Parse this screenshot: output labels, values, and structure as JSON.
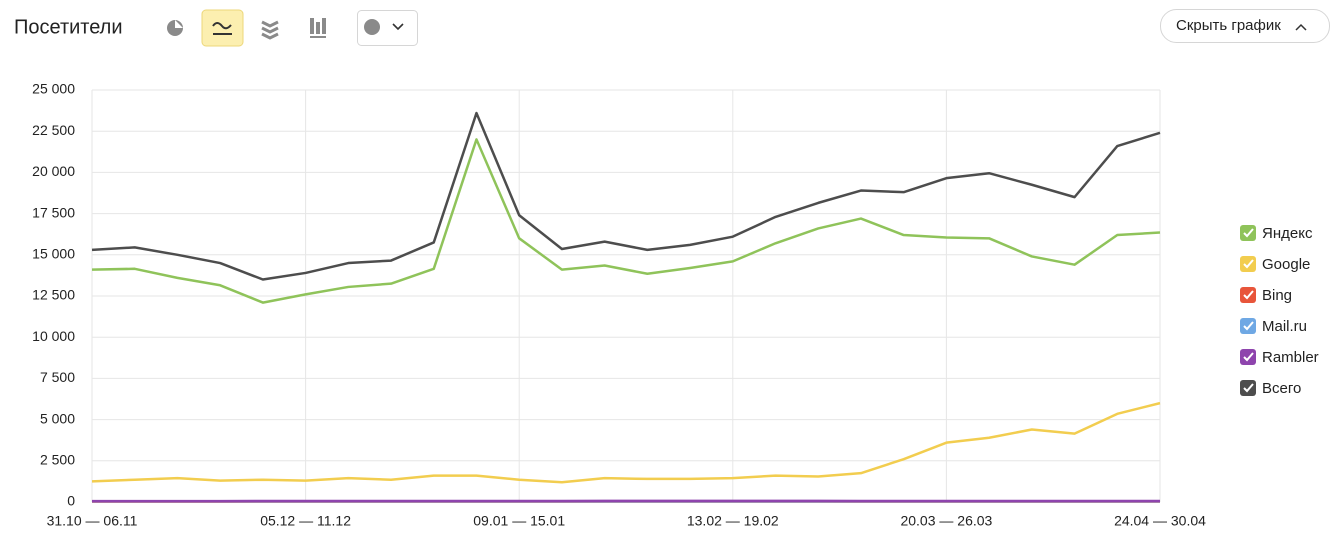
{
  "header": {
    "title": "Посетители",
    "toggle_button": "Скрыть график"
  },
  "chart_data": {
    "type": "line",
    "categories": [
      "31.10 — 06.11",
      null,
      null,
      null,
      null,
      "05.12 — 11.12",
      null,
      null,
      null,
      null,
      "09.01 — 15.01",
      null,
      null,
      null,
      null,
      "13.02 — 19.02",
      null,
      null,
      null,
      null,
      "20.03 — 26.03",
      null,
      null,
      null,
      null,
      "24.04 — 30.04"
    ],
    "ylim": [
      0,
      25000
    ],
    "yticks": [
      0,
      {
        "value": 2500,
        "label": "2 500"
      },
      {
        "value": 5000,
        "label": "5 000"
      },
      {
        "value": 7500,
        "label": "7 500"
      },
      {
        "value": 10000,
        "label": "10 000"
      },
      {
        "value": 12500,
        "label": "12 500"
      },
      {
        "value": 15000,
        "label": "15 000"
      },
      {
        "value": 17500,
        "label": "17 500"
      },
      {
        "value": 20000,
        "label": "20 000"
      },
      {
        "value": 22500,
        "label": "22 500"
      },
      {
        "value": 25000,
        "label": "25 000"
      }
    ],
    "grid": true,
    "legend": "right",
    "series": [
      {
        "name": "Яндекс",
        "color": "#8fc35a",
        "values": [
          14100,
          14150,
          13600,
          13150,
          12100,
          12600,
          13050,
          13250,
          14150,
          22000,
          16000,
          14100,
          14350,
          13850,
          14200,
          14600,
          15700,
          16600,
          17200,
          16200,
          16050,
          16000,
          14900,
          14400,
          16200,
          16350
        ]
      },
      {
        "name": "Google",
        "color": "#f2cd4f",
        "values": [
          1250,
          1350,
          1450,
          1300,
          1350,
          1300,
          1450,
          1350,
          1600,
          1600,
          1350,
          1200,
          1450,
          1400,
          1400,
          1450,
          1600,
          1550,
          1750,
          2600,
          3600,
          3900,
          4400,
          4150,
          5350,
          6000
        ]
      },
      {
        "name": "Bing",
        "color": "#e8553a",
        "values": [
          20,
          20,
          20,
          20,
          20,
          20,
          20,
          20,
          20,
          20,
          20,
          20,
          20,
          20,
          20,
          20,
          20,
          20,
          20,
          20,
          20,
          20,
          20,
          20,
          20,
          20
        ]
      },
      {
        "name": "Mail.ru",
        "color": "#6fa8e4",
        "values": [
          40,
          40,
          40,
          40,
          40,
          40,
          40,
          40,
          40,
          40,
          40,
          40,
          40,
          40,
          40,
          40,
          40,
          40,
          40,
          40,
          40,
          40,
          40,
          40,
          40,
          40
        ]
      },
      {
        "name": "Rambler",
        "color": "#8e44ad",
        "values": [
          50,
          50,
          50,
          50,
          60,
          60,
          60,
          60,
          60,
          60,
          60,
          60,
          70,
          70,
          70,
          70,
          70,
          70,
          60,
          60,
          60,
          60,
          60,
          60,
          60,
          60
        ]
      },
      {
        "name": "Всего",
        "color": "#4d4d4d",
        "values": [
          15300,
          15450,
          15000,
          14500,
          13500,
          13900,
          14500,
          14650,
          15750,
          23600,
          17400,
          15350,
          15800,
          15300,
          15600,
          16100,
          17300,
          18150,
          18900,
          18800,
          19650,
          19950,
          19250,
          18500,
          21600,
          22400
        ]
      }
    ]
  }
}
